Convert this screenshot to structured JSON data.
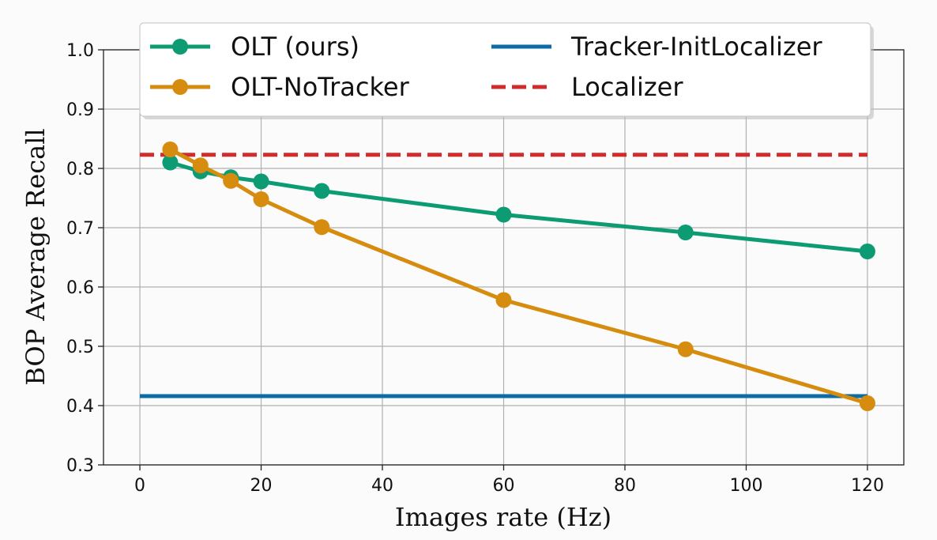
{
  "chart_data": {
    "type": "line",
    "xlabel": "Images rate (Hz)",
    "ylabel": "BOP Average Recall",
    "xlim": [
      -6,
      126
    ],
    "ylim": [
      0.3,
      1.0
    ],
    "xticks": [
      0,
      20,
      40,
      60,
      80,
      100,
      120
    ],
    "xtick_labels": [
      "0",
      "20",
      "40",
      "60",
      "80",
      "100",
      "120"
    ],
    "yticks": [
      0.3,
      0.4,
      0.5,
      0.6,
      0.7,
      0.8,
      0.9,
      1.0
    ],
    "ytick_labels": [
      "0.3",
      "0.4",
      "0.5",
      "0.6",
      "0.7",
      "0.8",
      "0.9",
      "1.0"
    ],
    "grid": true,
    "legend_position": "top",
    "series": [
      {
        "name": "OLT (ours)",
        "color": "#0c9b72",
        "style": "solid-marker",
        "x": [
          5,
          10,
          15,
          20,
          30,
          60,
          90,
          120
        ],
        "y": [
          0.81,
          0.795,
          0.785,
          0.778,
          0.762,
          0.722,
          0.692,
          0.66
        ]
      },
      {
        "name": "OLT-NoTracker",
        "color": "#d68d0f",
        "style": "solid-marker",
        "x": [
          5,
          10,
          15,
          20,
          30,
          60,
          90,
          120
        ],
        "y": [
          0.832,
          0.805,
          0.779,
          0.748,
          0.701,
          0.578,
          0.495,
          0.404
        ]
      },
      {
        "name": "Tracker-InitLocalizer",
        "color": "#0b6ca6",
        "style": "solid",
        "x": [
          0,
          120
        ],
        "y": [
          0.416,
          0.416
        ]
      },
      {
        "name": "Localizer",
        "color": "#d12c2c",
        "style": "dashed",
        "x": [
          0,
          120
        ],
        "y": [
          0.823,
          0.823
        ]
      }
    ],
    "legend_order": [
      0,
      2,
      1,
      3
    ]
  }
}
